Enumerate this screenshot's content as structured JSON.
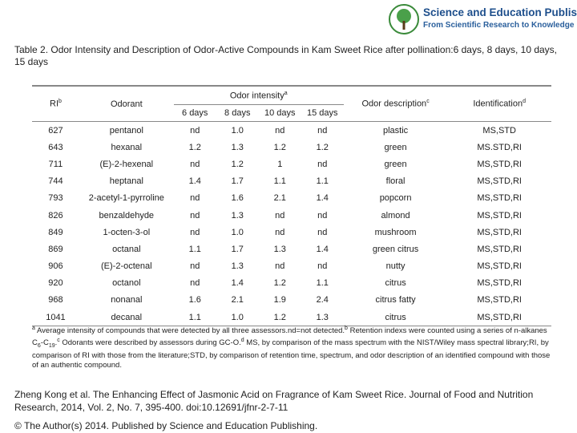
{
  "publisher": {
    "name": "Science and Education Publishing",
    "tagline": "From Scientific Research to Knowledge",
    "logo_icon": "tree-logo-icon"
  },
  "caption": "Table 2. Odor Intensity and Description of Odor-Active Compounds in Kam Sweet Rice after pollination:6 days, 8 days, 10 days, 15 days",
  "table": {
    "headers": {
      "ri": "RI",
      "ri_sup": "b",
      "odorant": "Odorant",
      "odor_intensity": "Odor intensity",
      "odor_intensity_sup": "a",
      "days": [
        "6 days",
        "8 days",
        "10 days",
        "15 days"
      ],
      "description": "Odor description",
      "description_sup": "c",
      "identification": "Identification",
      "identification_sup": "d"
    },
    "rows": [
      {
        "ri": "627",
        "odorant": "pentanol",
        "d6": "nd",
        "d8": "1.0",
        "d10": "nd",
        "d15": "nd",
        "desc": "plastic",
        "id": "MS,STD"
      },
      {
        "ri": "643",
        "odorant": "hexanal",
        "d6": "1.2",
        "d8": "1.3",
        "d10": "1.2",
        "d15": "1.2",
        "desc": "green",
        "id": "MS.STD,RI"
      },
      {
        "ri": "711",
        "odorant": "(E)-2-hexenal",
        "d6": "nd",
        "d8": "1.2",
        "d10": "1",
        "d15": "nd",
        "desc": "green",
        "id": "MS,STD,RI"
      },
      {
        "ri": "744",
        "odorant": "heptanal",
        "d6": "1.4",
        "d8": "1.7",
        "d10": "1.1",
        "d15": "1.1",
        "desc": "floral",
        "id": "MS,STD,RI"
      },
      {
        "ri": "793",
        "odorant": "2-acetyl-1-pyrroline",
        "d6": "nd",
        "d8": "1.6",
        "d10": "2.1",
        "d15": "1.4",
        "desc": "popcorn",
        "id": "MS,STD,RI"
      },
      {
        "ri": "826",
        "odorant": "benzaldehyde",
        "d6": "nd",
        "d8": "1.3",
        "d10": "nd",
        "d15": "nd",
        "desc": "almond",
        "id": "MS,STD,RI"
      },
      {
        "ri": "849",
        "odorant": "1-octen-3-ol",
        "d6": "nd",
        "d8": "1.0",
        "d10": "nd",
        "d15": "nd",
        "desc": "mushroom",
        "id": "MS,STD,RI"
      },
      {
        "ri": "869",
        "odorant": "octanal",
        "d6": "1.1",
        "d8": "1.7",
        "d10": "1.3",
        "d15": "1.4",
        "desc": "green citrus",
        "id": "MS,STD,RI"
      },
      {
        "ri": "906",
        "odorant": "(E)-2-octenal",
        "d6": "nd",
        "d8": "1.3",
        "d10": "nd",
        "d15": "nd",
        "desc": "nutty",
        "id": "MS,STD,RI"
      },
      {
        "ri": "920",
        "odorant": "octanol",
        "d6": "nd",
        "d8": "1.4",
        "d10": "1.2",
        "d15": "1.1",
        "desc": "citrus",
        "id": "MS,STD,RI"
      },
      {
        "ri": "968",
        "odorant": "nonanal",
        "d6": "1.6",
        "d8": "2.1",
        "d10": "1.9",
        "d15": "2.4",
        "desc": "citrus fatty",
        "id": "MS,STD,RI"
      },
      {
        "ri": "1041",
        "odorant": "decanal",
        "d6": "1.1",
        "d8": "1.0",
        "d10": "1.2",
        "d15": "1.3",
        "desc": "citrus",
        "id": "MS,STD,RI"
      }
    ]
  },
  "footnote": {
    "sup_a": "a",
    "part1": " Average intensity of compounds that were detected by all three assessors.nd=not detected.",
    "sup_b": "b",
    "part2": " Retention indexs were counted using a series of n-alkanes C",
    "sub_1": "6",
    "part3": "-C",
    "sub_2": "19",
    "part4": ".",
    "sup_c": "c",
    "part5": " Odorants were described by assessors during GC-O.",
    "sup_d": "d",
    "part6": " MS, by comparison of the mass spectrum with the NIST/Wiley mass spectral library;RI, by comparison of RI with those from the literature;STD, by comparison of retention time, spectrum, and odor description of an identified compound with those of an authentic compound."
  },
  "citation": "Zheng Kong et al. The Enhancing Effect of Jasmonic Acid on Fragrance of Kam Sweet Rice. Journal of Food and Nutrition Research, 2014, Vol. 2, No. 7, 395-400. doi:10.12691/jfnr-2-7-11",
  "copyright": "© The Author(s) 2014. Published by Science and Education Publishing."
}
